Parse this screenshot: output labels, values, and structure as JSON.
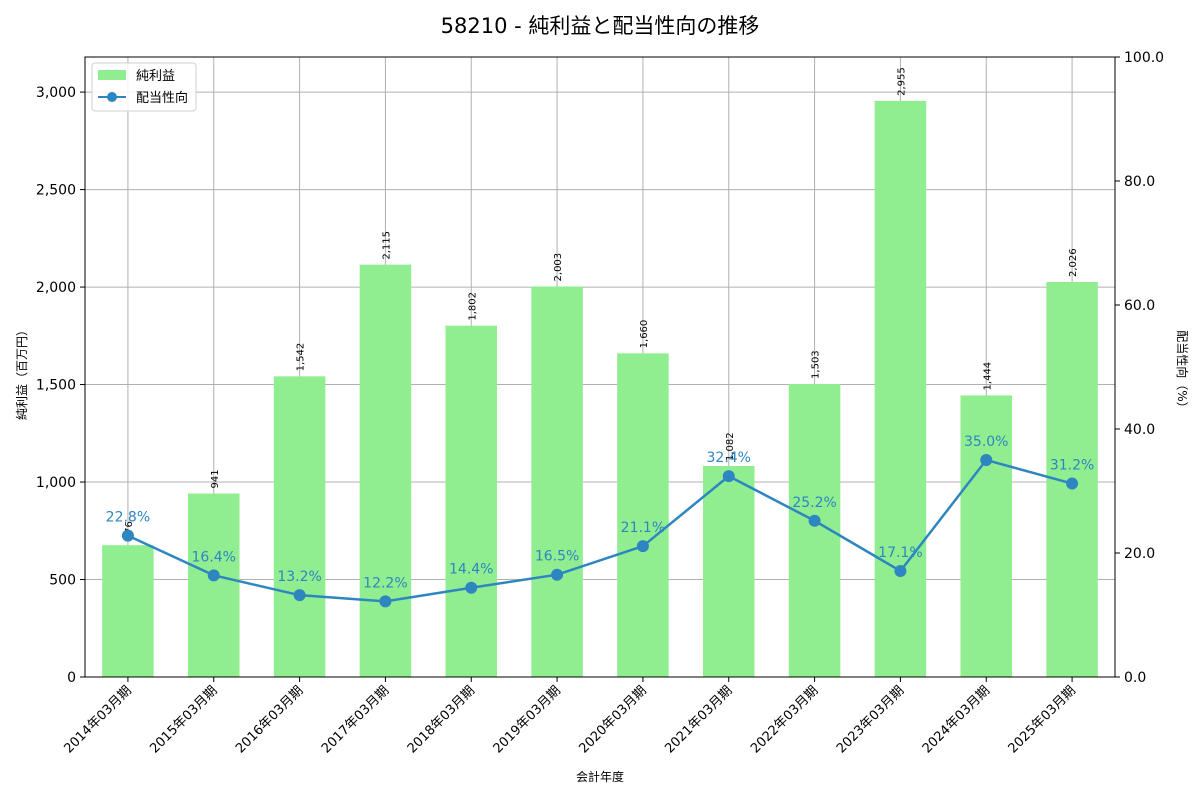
{
  "chart_data": {
    "type": "bar+line",
    "title": "58210 - 純利益と配当性向の推移",
    "xlabel": "会計年度",
    "ylabel_left": "純利益（百万円）",
    "ylabel_right": "配当性向（%）",
    "categories": [
      "2014年03月期",
      "2015年03月期",
      "2016年03月期",
      "2017年03月期",
      "2018年03月期",
      "2019年03月期",
      "2020年03月期",
      "2021年03月期",
      "2022年03月期",
      "2023年03月期",
      "2024年03月期",
      "2025年03月期"
    ],
    "series": [
      {
        "name": "純利益",
        "type": "bar",
        "axis": "left",
        "color": "#90ee90",
        "values": [
          676,
          941,
          1542,
          2115,
          1802,
          2003,
          1660,
          1082,
          1503,
          2955,
          1444,
          2026
        ],
        "labels": [
          "676",
          "941",
          "1,542",
          "2,115",
          "1,802",
          "2,003",
          "1,660",
          "1,082",
          "1,503",
          "2,955",
          "1,444",
          "2,026"
        ]
      },
      {
        "name": "配当性向",
        "type": "line",
        "axis": "right",
        "color": "#2e86c1",
        "values": [
          22.8,
          16.4,
          13.2,
          12.2,
          14.4,
          16.5,
          21.1,
          32.4,
          25.2,
          17.1,
          35.0,
          31.2
        ],
        "labels": [
          "22.8%",
          "16.4%",
          "13.2%",
          "12.2%",
          "14.4%",
          "16.5%",
          "21.1%",
          "32.4%",
          "25.2%",
          "17.1%",
          "35.0%",
          "31.2%"
        ]
      }
    ],
    "ylim_left": [
      0,
      3180
    ],
    "ylim_right": [
      0,
      100
    ],
    "yticks_left": [
      0,
      500,
      1000,
      1500,
      2000,
      2500,
      3000
    ],
    "yticks_left_labels": [
      "0",
      "500",
      "1,000",
      "1,500",
      "2,000",
      "2,500",
      "3,000"
    ],
    "yticks_right": [
      0,
      20,
      40,
      60,
      80,
      100
    ],
    "yticks_right_labels": [
      "0.0",
      "20.0",
      "40.0",
      "60.0",
      "80.0",
      "100.0"
    ],
    "grid": true,
    "legend_position": "upper left"
  }
}
